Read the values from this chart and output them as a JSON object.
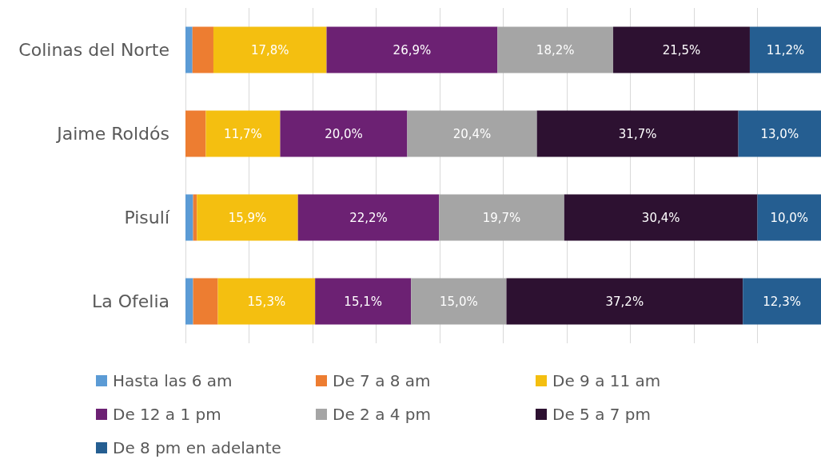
{
  "chart_data": {
    "type": "bar",
    "orientation": "horizontal",
    "stacked": true,
    "categories": [
      "Colinas del Norte",
      "Jaime Roldós",
      "Pisulí",
      "La Ofelia"
    ],
    "series": [
      {
        "name": "Hasta las 6 am",
        "color": "#5b9bd5",
        "values": [
          1.1,
          0,
          1.2,
          1.2
        ],
        "value_labels": [
          null,
          null,
          null,
          null
        ]
      },
      {
        "name": "De 7 a 8 am",
        "color": "#ed7d31",
        "values": [
          3.3,
          3.2,
          0.6,
          3.9
        ],
        "value_labels": [
          null,
          null,
          null,
          null
        ]
      },
      {
        "name": "De 9 a 11 am",
        "color": "#f4bf10",
        "values": [
          17.8,
          11.7,
          15.9,
          15.3
        ],
        "value_labels": [
          "17,8%",
          "11,7%",
          "15,9%",
          "15,3%"
        ]
      },
      {
        "name": "De 12 a 1 pm",
        "color": "#6c2173",
        "values": [
          26.9,
          20.0,
          22.2,
          15.1
        ],
        "value_labels": [
          "26,9%",
          "20,0%",
          "22,2%",
          "15,1%"
        ]
      },
      {
        "name": "De 2 a 4 pm",
        "color": "#a5a5a5",
        "values": [
          18.2,
          20.4,
          19.7,
          15.0
        ],
        "value_labels": [
          "18,2%",
          "20,4%",
          "19,7%",
          "15,0%"
        ]
      },
      {
        "name": "De 5 a 7 pm",
        "color": "#2d1131",
        "values": [
          21.5,
          31.7,
          30.4,
          37.2
        ],
        "value_labels": [
          "21,5%",
          "31,7%",
          "30,4%",
          "37,2%"
        ]
      },
      {
        "name": "De 8 pm en adelante",
        "color": "#255e91",
        "values": [
          11.2,
          13.0,
          10.0,
          12.3
        ],
        "value_labels": [
          "11,2%",
          "13,0%",
          "10,0%",
          "12,3%"
        ]
      }
    ],
    "tick_labels": "y",
    "grid": "x",
    "legend": "bottom"
  }
}
